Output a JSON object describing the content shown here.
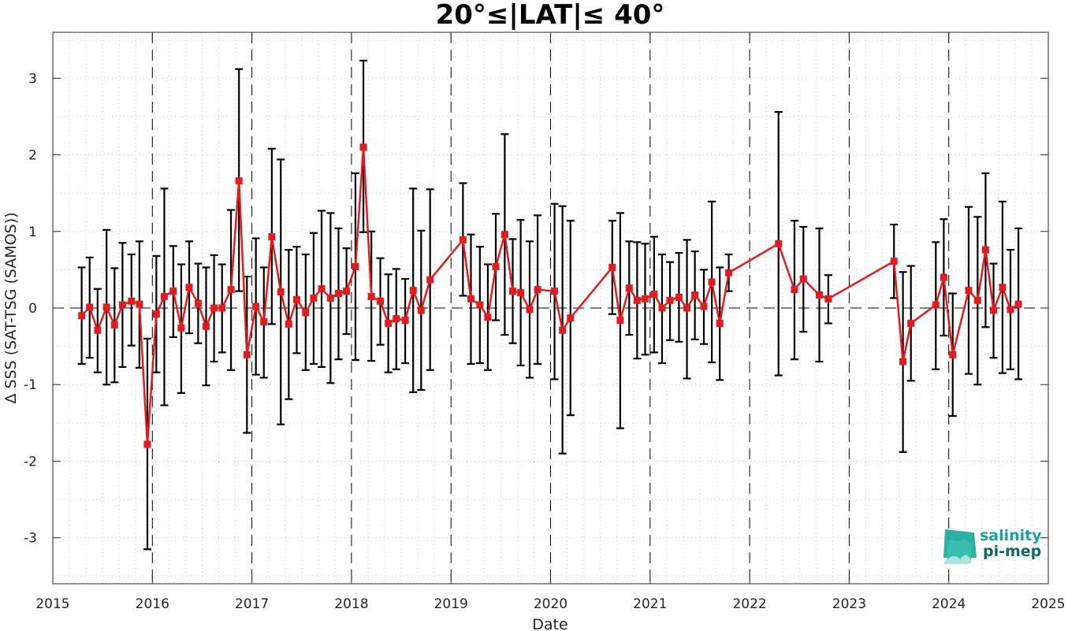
{
  "chart_data": {
    "type": "line",
    "title": "20°≤|LAT|≤ 40°",
    "xlabel": "Date",
    "ylabel": "Δ SSS (SAT-TSG (SAMOS))",
    "xlim": [
      2015,
      2025
    ],
    "ylim": [
      -3.6,
      3.6
    ],
    "x_ticks": [
      "2015",
      "2016",
      "2017",
      "2018",
      "2019",
      "2020",
      "2021",
      "2022",
      "2023",
      "2024",
      "2025"
    ],
    "y_ticks": [
      "3",
      "2",
      "1",
      "0",
      "-1",
      "-2",
      "-3"
    ],
    "grid": "minor dotted",
    "vertical_year_lines": "dashed",
    "zero_line": "dashed",
    "series": [
      {
        "color": "#e41a1c",
        "marker": "square",
        "errorbar_color": "#000000",
        "points": [
          {
            "x": 2015.29,
            "y": -0.1,
            "lo": -0.73,
            "hi": 0.53
          },
          {
            "x": 2015.37,
            "y": 0.01,
            "lo": -0.65,
            "hi": 0.66
          },
          {
            "x": 2015.45,
            "y": -0.29,
            "lo": -0.84,
            "hi": 0.25
          },
          {
            "x": 2015.54,
            "y": 0.01,
            "lo": -1.0,
            "hi": 1.02
          },
          {
            "x": 2015.62,
            "y": -0.22,
            "lo": -0.97,
            "hi": 0.52
          },
          {
            "x": 2015.7,
            "y": 0.04,
            "lo": -0.77,
            "hi": 0.85
          },
          {
            "x": 2015.79,
            "y": 0.09,
            "lo": -0.49,
            "hi": 0.7
          },
          {
            "x": 2015.87,
            "y": 0.05,
            "lo": -0.78,
            "hi": 0.87
          },
          {
            "x": 2015.95,
            "y": -1.78,
            "lo": -3.15,
            "hi": -0.4
          },
          {
            "x": 2016.04,
            "y": -0.08,
            "lo": -0.84,
            "hi": 0.68
          },
          {
            "x": 2016.12,
            "y": 0.15,
            "lo": -1.27,
            "hi": 1.56
          },
          {
            "x": 2016.21,
            "y": 0.22,
            "lo": -0.38,
            "hi": 0.81
          },
          {
            "x": 2016.29,
            "y": -0.26,
            "lo": -1.11,
            "hi": 0.57
          },
          {
            "x": 2016.37,
            "y": 0.27,
            "lo": -0.33,
            "hi": 0.87
          },
          {
            "x": 2016.46,
            "y": 0.06,
            "lo": -0.46,
            "hi": 0.58
          },
          {
            "x": 2016.54,
            "y": -0.24,
            "lo": -1.01,
            "hi": 0.53
          },
          {
            "x": 2016.62,
            "y": -0.0,
            "lo": -0.7,
            "hi": 0.69
          },
          {
            "x": 2016.7,
            "y": -0.0,
            "lo": -0.58,
            "hi": 0.57
          },
          {
            "x": 2016.79,
            "y": 0.24,
            "lo": -0.81,
            "hi": 1.28
          },
          {
            "x": 2016.87,
            "y": 1.66,
            "lo": 0.22,
            "hi": 3.12
          },
          {
            "x": 2016.95,
            "y": -0.61,
            "lo": -1.63,
            "hi": 0.41
          },
          {
            "x": 2017.04,
            "y": 0.02,
            "lo": -0.87,
            "hi": 0.91
          },
          {
            "x": 2017.12,
            "y": -0.18,
            "lo": -0.91,
            "hi": 0.53
          },
          {
            "x": 2017.2,
            "y": 0.93,
            "lo": -0.21,
            "hi": 2.08
          },
          {
            "x": 2017.29,
            "y": 0.21,
            "lo": -1.52,
            "hi": 1.94
          },
          {
            "x": 2017.37,
            "y": -0.21,
            "lo": -1.19,
            "hi": 0.76
          },
          {
            "x": 2017.45,
            "y": 0.11,
            "lo": -0.59,
            "hi": 0.8
          },
          {
            "x": 2017.54,
            "y": -0.06,
            "lo": -0.81,
            "hi": 0.7
          },
          {
            "x": 2017.62,
            "y": 0.13,
            "lo": -0.73,
            "hi": 0.98
          },
          {
            "x": 2017.7,
            "y": 0.25,
            "lo": -0.77,
            "hi": 1.27
          },
          {
            "x": 2017.79,
            "y": 0.13,
            "lo": -0.98,
            "hi": 1.24
          },
          {
            "x": 2017.87,
            "y": 0.19,
            "lo": -0.67,
            "hi": 1.04
          },
          {
            "x": 2017.95,
            "y": 0.22,
            "lo": -0.34,
            "hi": 0.78
          },
          {
            "x": 2018.04,
            "y": 0.54,
            "lo": -0.68,
            "hi": 1.76
          },
          {
            "x": 2018.12,
            "y": 2.1,
            "lo": 0.99,
            "hi": 3.23
          },
          {
            "x": 2018.2,
            "y": 0.15,
            "lo": -0.69,
            "hi": 1.0
          },
          {
            "x": 2018.29,
            "y": 0.09,
            "lo": -0.48,
            "hi": 0.65
          },
          {
            "x": 2018.37,
            "y": -0.2,
            "lo": -0.84,
            "hi": 0.44
          },
          {
            "x": 2018.45,
            "y": -0.14,
            "lo": -0.8,
            "hi": 0.51
          },
          {
            "x": 2018.54,
            "y": -0.16,
            "lo": -0.72,
            "hi": 0.38
          },
          {
            "x": 2018.62,
            "y": 0.23,
            "lo": -1.1,
            "hi": 1.56
          },
          {
            "x": 2018.7,
            "y": -0.03,
            "lo": -1.07,
            "hi": 1.01
          },
          {
            "x": 2018.79,
            "y": 0.37,
            "lo": -0.81,
            "hi": 1.55
          },
          {
            "x": 2019.12,
            "y": 0.89,
            "lo": 0.16,
            "hi": 1.63
          },
          {
            "x": 2019.2,
            "y": 0.12,
            "lo": -0.73,
            "hi": 0.96
          },
          {
            "x": 2019.29,
            "y": 0.04,
            "lo": -0.72,
            "hi": 0.8
          },
          {
            "x": 2019.37,
            "y": -0.12,
            "lo": -0.81,
            "hi": 0.57
          },
          {
            "x": 2019.45,
            "y": 0.54,
            "lo": -0.16,
            "hi": 1.23
          },
          {
            "x": 2019.54,
            "y": 0.96,
            "lo": -0.35,
            "hi": 2.27
          },
          {
            "x": 2019.62,
            "y": 0.22,
            "lo": -0.46,
            "hi": 0.9
          },
          {
            "x": 2019.7,
            "y": 0.2,
            "lo": -0.75,
            "hi": 1.15
          },
          {
            "x": 2019.79,
            "y": -0.02,
            "lo": -0.91,
            "hi": 0.87
          },
          {
            "x": 2019.87,
            "y": 0.24,
            "lo": -0.73,
            "hi": 1.21
          },
          {
            "x": 2020.04,
            "y": 0.22,
            "lo": -0.93,
            "hi": 1.36
          },
          {
            "x": 2020.12,
            "y": -0.29,
            "lo": -1.9,
            "hi": 1.33
          },
          {
            "x": 2020.2,
            "y": -0.13,
            "lo": -1.4,
            "hi": 1.14
          },
          {
            "x": 2020.62,
            "y": 0.53,
            "lo": -0.08,
            "hi": 1.14
          },
          {
            "x": 2020.7,
            "y": -0.16,
            "lo": -1.57,
            "hi": 1.24
          },
          {
            "x": 2020.79,
            "y": 0.26,
            "lo": -0.35,
            "hi": 0.87
          },
          {
            "x": 2020.87,
            "y": 0.1,
            "lo": -0.66,
            "hi": 0.86
          },
          {
            "x": 2020.95,
            "y": 0.12,
            "lo": -0.61,
            "hi": 0.84
          },
          {
            "x": 2021.04,
            "y": 0.18,
            "lo": -0.58,
            "hi": 0.93
          },
          {
            "x": 2021.12,
            "y": -0.0,
            "lo": -0.72,
            "hi": 0.7
          },
          {
            "x": 2021.2,
            "y": 0.1,
            "lo": -0.42,
            "hi": 0.6
          },
          {
            "x": 2021.29,
            "y": 0.14,
            "lo": -0.44,
            "hi": 0.72
          },
          {
            "x": 2021.37,
            "y": 0.0,
            "lo": -0.92,
            "hi": 0.89
          },
          {
            "x": 2021.45,
            "y": 0.17,
            "lo": -0.41,
            "hi": 0.74
          },
          {
            "x": 2021.54,
            "y": 0.02,
            "lo": -0.47,
            "hi": 0.5
          },
          {
            "x": 2021.62,
            "y": 0.34,
            "lo": -0.71,
            "hi": 1.39
          },
          {
            "x": 2021.7,
            "y": -0.2,
            "lo": -0.94,
            "hi": 0.53
          },
          {
            "x": 2021.79,
            "y": 0.46,
            "lo": 0.22,
            "hi": 0.7
          },
          {
            "x": 2022.29,
            "y": 0.84,
            "lo": -0.88,
            "hi": 2.56
          },
          {
            "x": 2022.45,
            "y": 0.24,
            "lo": -0.67,
            "hi": 1.14
          },
          {
            "x": 2022.54,
            "y": 0.38,
            "lo": -0.31,
            "hi": 1.06
          },
          {
            "x": 2022.7,
            "y": 0.17,
            "lo": -0.7,
            "hi": 1.04
          },
          {
            "x": 2022.79,
            "y": 0.12,
            "lo": -0.2,
            "hi": 0.43
          },
          {
            "x": 2023.45,
            "y": 0.61,
            "lo": 0.13,
            "hi": 1.09
          },
          {
            "x": 2023.54,
            "y": -0.7,
            "lo": -1.88,
            "hi": 0.47
          },
          {
            "x": 2023.62,
            "y": -0.2,
            "lo": -0.95,
            "hi": 0.55
          },
          {
            "x": 2023.87,
            "y": 0.04,
            "lo": -0.8,
            "hi": 0.86
          },
          {
            "x": 2023.95,
            "y": 0.4,
            "lo": -0.36,
            "hi": 1.16
          },
          {
            "x": 2024.04,
            "y": -0.61,
            "lo": -1.41,
            "hi": 0.19
          },
          {
            "x": 2024.2,
            "y": 0.23,
            "lo": -0.86,
            "hi": 1.32
          },
          {
            "x": 2024.29,
            "y": 0.1,
            "lo": -1.0,
            "hi": 1.19
          },
          {
            "x": 2024.37,
            "y": 0.76,
            "lo": -0.25,
            "hi": 1.76
          },
          {
            "x": 2024.45,
            "y": -0.03,
            "lo": -0.65,
            "hi": 0.58
          },
          {
            "x": 2024.54,
            "y": 0.27,
            "lo": -0.85,
            "hi": 1.39
          },
          {
            "x": 2024.62,
            "y": -0.02,
            "lo": -0.8,
            "hi": 0.76
          },
          {
            "x": 2024.7,
            "y": 0.05,
            "lo": -0.93,
            "hi": 1.04
          }
        ]
      }
    ]
  },
  "logo": {
    "line1": "salinity",
    "line2": "pi-mep",
    "color1": "#1aa39a",
    "color2": "#0e6b64"
  }
}
